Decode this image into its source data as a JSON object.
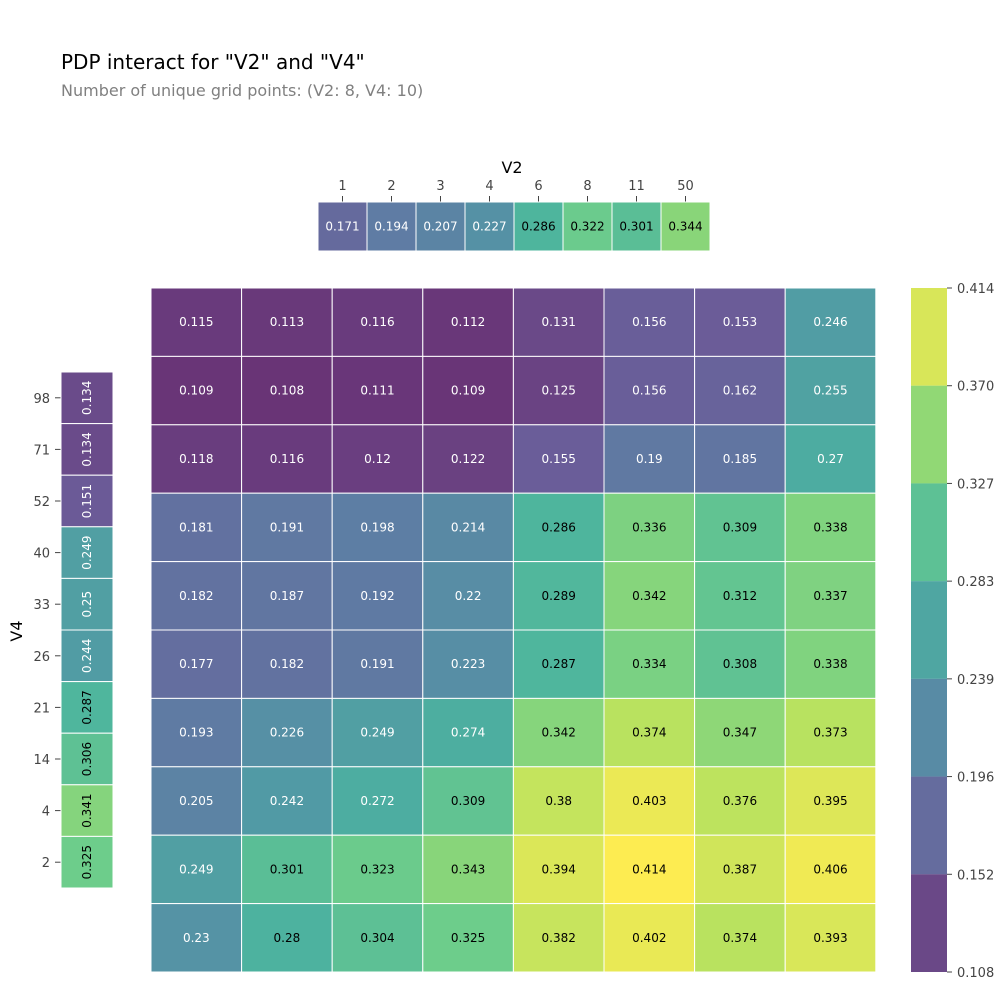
{
  "title": "PDP interact for \"V2\" and \"V4\"",
  "subtitle": "Number of unique grid points: (V2: 8, V4: 10)",
  "chart_data": {
    "type": "heatmap",
    "x_name": "V2",
    "y_name": "V4",
    "x_ticks": [
      "1",
      "2",
      "3",
      "4",
      "6",
      "8",
      "11",
      "50"
    ],
    "y_ticks": [
      "98",
      "71",
      "52",
      "40",
      "33",
      "26",
      "21",
      "14",
      "4",
      "2"
    ],
    "x_marginal": [
      0.171,
      0.194,
      0.207,
      0.227,
      0.286,
      0.322,
      0.301,
      0.344
    ],
    "y_marginal": [
      0.134,
      0.134,
      0.151,
      0.249,
      0.25,
      0.244,
      0.287,
      0.306,
      0.341,
      0.325
    ],
    "matrix": [
      [
        0.115,
        0.113,
        0.116,
        0.112,
        0.131,
        0.156,
        0.153,
        0.246
      ],
      [
        0.109,
        0.108,
        0.111,
        0.109,
        0.125,
        0.156,
        0.162,
        0.255
      ],
      [
        0.118,
        0.116,
        0.12,
        0.122,
        0.155,
        0.19,
        0.185,
        0.27
      ],
      [
        0.181,
        0.191,
        0.198,
        0.214,
        0.286,
        0.336,
        0.309,
        0.338
      ],
      [
        0.182,
        0.187,
        0.192,
        0.22,
        0.289,
        0.342,
        0.312,
        0.337
      ],
      [
        0.177,
        0.182,
        0.191,
        0.223,
        0.287,
        0.334,
        0.308,
        0.338
      ],
      [
        0.193,
        0.226,
        0.249,
        0.274,
        0.342,
        0.374,
        0.347,
        0.373
      ],
      [
        0.205,
        0.242,
        0.272,
        0.309,
        0.38,
        0.403,
        0.376,
        0.395
      ],
      [
        0.249,
        0.301,
        0.323,
        0.343,
        0.394,
        0.414,
        0.387,
        0.406
      ],
      [
        0.23,
        0.28,
        0.304,
        0.325,
        0.382,
        0.402,
        0.374,
        0.393
      ]
    ],
    "colorbar_ticks": [
      "0.414",
      "0.370",
      "0.327",
      "0.283",
      "0.239",
      "0.196",
      "0.152",
      "0.108"
    ],
    "range": [
      0.108,
      0.414
    ],
    "colorscale": [
      "#440154",
      "#46327e",
      "#365c8d",
      "#277f8e",
      "#1fa187",
      "#4ac16d",
      "#a0da39",
      "#fde725"
    ]
  }
}
